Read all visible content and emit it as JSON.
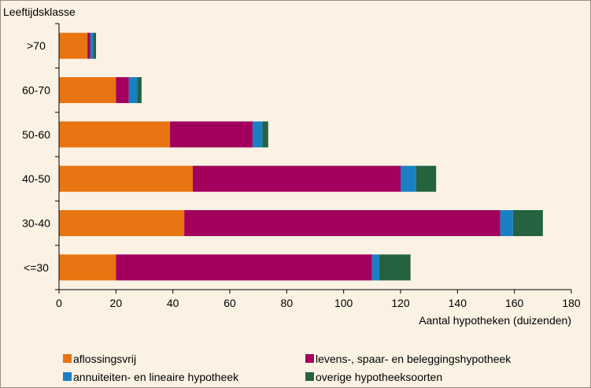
{
  "chart_data": {
    "type": "bar",
    "orientation": "horizontal",
    "stacked": true,
    "ylabel": "Leeftijdsklasse",
    "xlabel": "Aantal hypotheken (duizenden)",
    "xlim": [
      0,
      180
    ],
    "xticks": [
      0,
      20,
      40,
      60,
      80,
      100,
      120,
      140,
      160,
      180
    ],
    "tick_labels": [
      "0",
      "20",
      "40",
      "60",
      "80",
      "100",
      "120",
      "140",
      "160",
      "180"
    ],
    "categories": [
      ">70",
      "60-70",
      "50-60",
      "40-50",
      "30-40",
      "<=30"
    ],
    "series": [
      {
        "name": "aflossingsvrij",
        "color": "#e87511",
        "values": [
          10,
          20,
          39,
          47,
          44,
          20
        ]
      },
      {
        "name": "levens-, spaar- en beleggingshypotheek",
        "color": "#a3005e",
        "values": [
          1,
          4.5,
          29,
          73,
          111,
          90
        ]
      },
      {
        "name": "annuiteiten- en lineaire  hypotheek",
        "color": "#1a80c4",
        "values": [
          1,
          3,
          3.5,
          5.5,
          4.5,
          2.5
        ]
      },
      {
        "name": "overige hypotheeksoorten",
        "color": "#256240",
        "values": [
          1,
          1.5,
          2,
          7,
          10.5,
          11
        ]
      }
    ],
    "grid": false,
    "legend": "bottom"
  }
}
